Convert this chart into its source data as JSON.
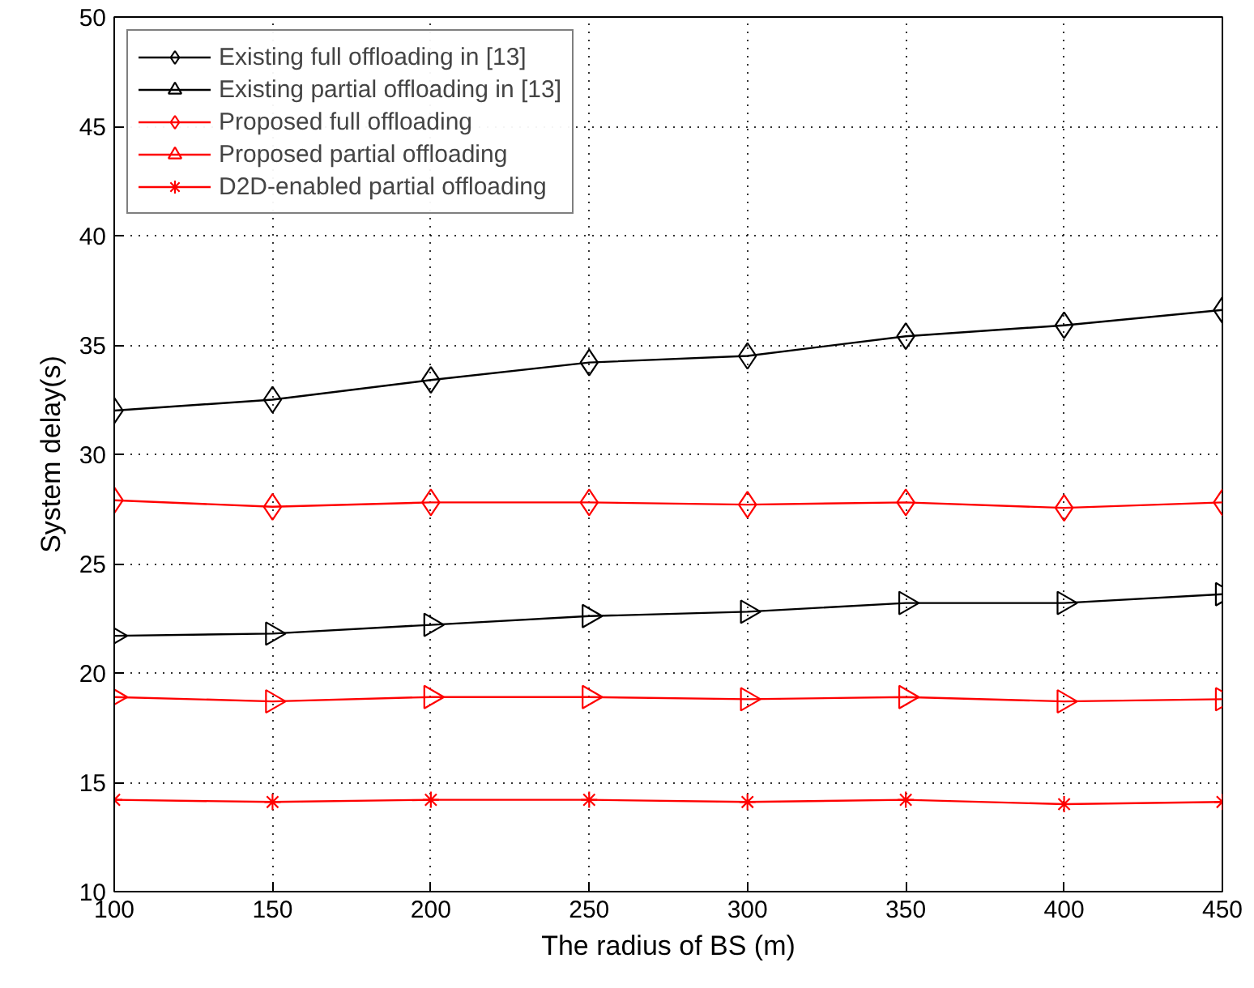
{
  "chart_data": {
    "type": "line",
    "xlabel": "The radius of BS (m)",
    "ylabel": "System delay(s)",
    "x": [
      100,
      150,
      200,
      250,
      300,
      350,
      400,
      450
    ],
    "xlim": [
      100,
      450
    ],
    "xticks": [
      100,
      150,
      200,
      250,
      300,
      350,
      400,
      450
    ],
    "ylim": [
      10,
      50
    ],
    "yticks": [
      10,
      15,
      20,
      25,
      30,
      35,
      40,
      45,
      50
    ],
    "grid": true,
    "legend": "top left",
    "line_style": "solid",
    "series": [
      {
        "name": "Existing full offloading in [13]",
        "color": "#000000",
        "marker": "diamond",
        "values": [
          32.0,
          32.5,
          33.4,
          34.2,
          34.5,
          35.4,
          35.9,
          36.6
        ]
      },
      {
        "name": "Existing partial offloading in [13]",
        "color": "#000000",
        "marker": "triangle",
        "values": [
          21.7,
          21.8,
          22.2,
          22.6,
          22.8,
          23.2,
          23.2,
          23.6
        ]
      },
      {
        "name": "Proposed full offloading",
        "color": "#ff0000",
        "marker": "diamond",
        "values": [
          27.9,
          27.6,
          27.8,
          27.8,
          27.7,
          27.8,
          27.55,
          27.8
        ]
      },
      {
        "name": "Proposed partial offloading",
        "color": "#ff0000",
        "marker": "triangle",
        "values": [
          18.9,
          18.7,
          18.9,
          18.9,
          18.8,
          18.9,
          18.7,
          18.8
        ]
      },
      {
        "name": "D2D-enabled partial offloading",
        "color": "#ff0000",
        "marker": "cross",
        "values": [
          14.2,
          14.1,
          14.2,
          14.2,
          14.1,
          14.2,
          14.0,
          14.1
        ]
      }
    ]
  }
}
